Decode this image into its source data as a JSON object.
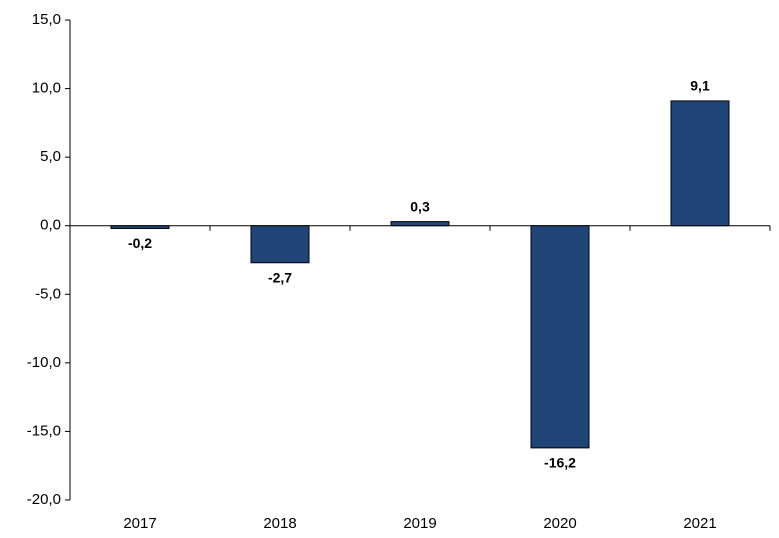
{
  "chart_data": {
    "type": "bar",
    "categories": [
      "2017",
      "2018",
      "2019",
      "2020",
      "2021"
    ],
    "values": [
      -0.2,
      -2.7,
      0.3,
      -16.2,
      9.1
    ],
    "value_labels": [
      "-0,2",
      "-2,7",
      "0,3",
      "-16,2",
      "9,1"
    ],
    "color": "#1f4478",
    "ylim": [
      -20,
      15
    ],
    "yticks": [
      {
        "value": -20,
        "label": "-20,0"
      },
      {
        "value": -15,
        "label": "-15,0"
      },
      {
        "value": -10,
        "label": "-10,0"
      },
      {
        "value": -5,
        "label": "-5,0"
      },
      {
        "value": 0,
        "label": "0,0"
      },
      {
        "value": 5,
        "label": "5,0"
      },
      {
        "value": 10,
        "label": "10,0"
      },
      {
        "value": 15,
        "label": "15,0"
      }
    ],
    "grid": false
  }
}
